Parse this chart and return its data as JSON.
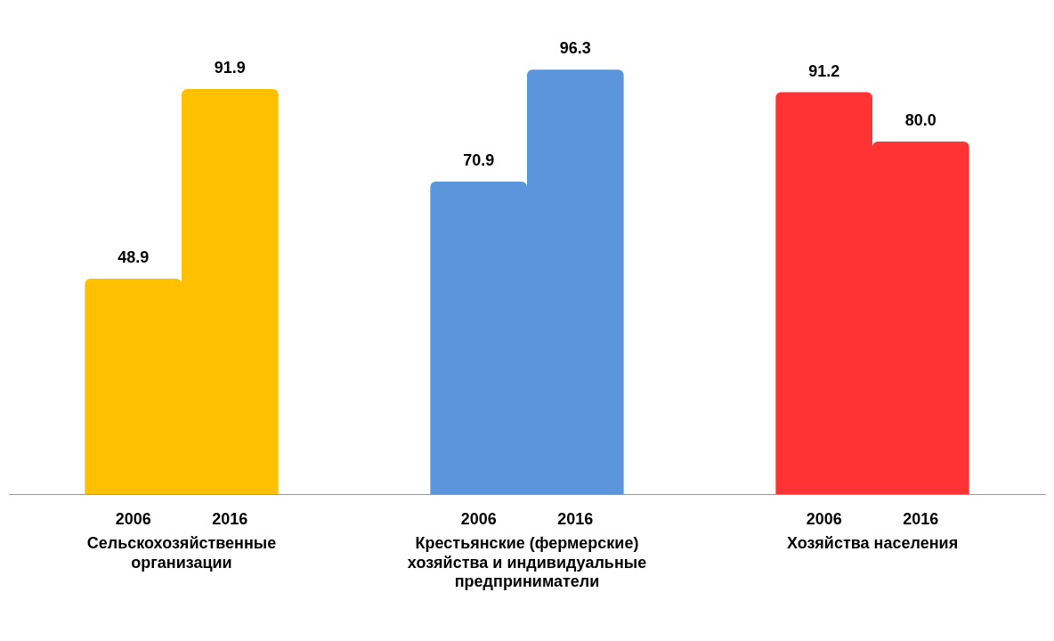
{
  "chart_data": {
    "type": "bar",
    "categories": [
      "Сельскохозяйственные организации",
      "Крестьянские (фермерские) хозяйства и индивидуальные предприниматели",
      "Хозяйства населения"
    ],
    "series": [
      {
        "name": "2006",
        "colors": [
          "#ffc000",
          "#5b96dc",
          "#ff3333"
        ],
        "values": [
          48.9,
          70.9,
          91.2
        ],
        "value_labels": [
          "48.9",
          "70.9",
          "91.2"
        ]
      },
      {
        "name": "2016",
        "colors": [
          "#ffc000",
          "#5b96dc",
          "#ff3333"
        ],
        "values": [
          91.9,
          96.3,
          80.0
        ],
        "value_labels": [
          "91.9",
          "96.3",
          "80.0"
        ]
      }
    ],
    "grid": false,
    "legend": false,
    "tick_labels": "x"
  }
}
